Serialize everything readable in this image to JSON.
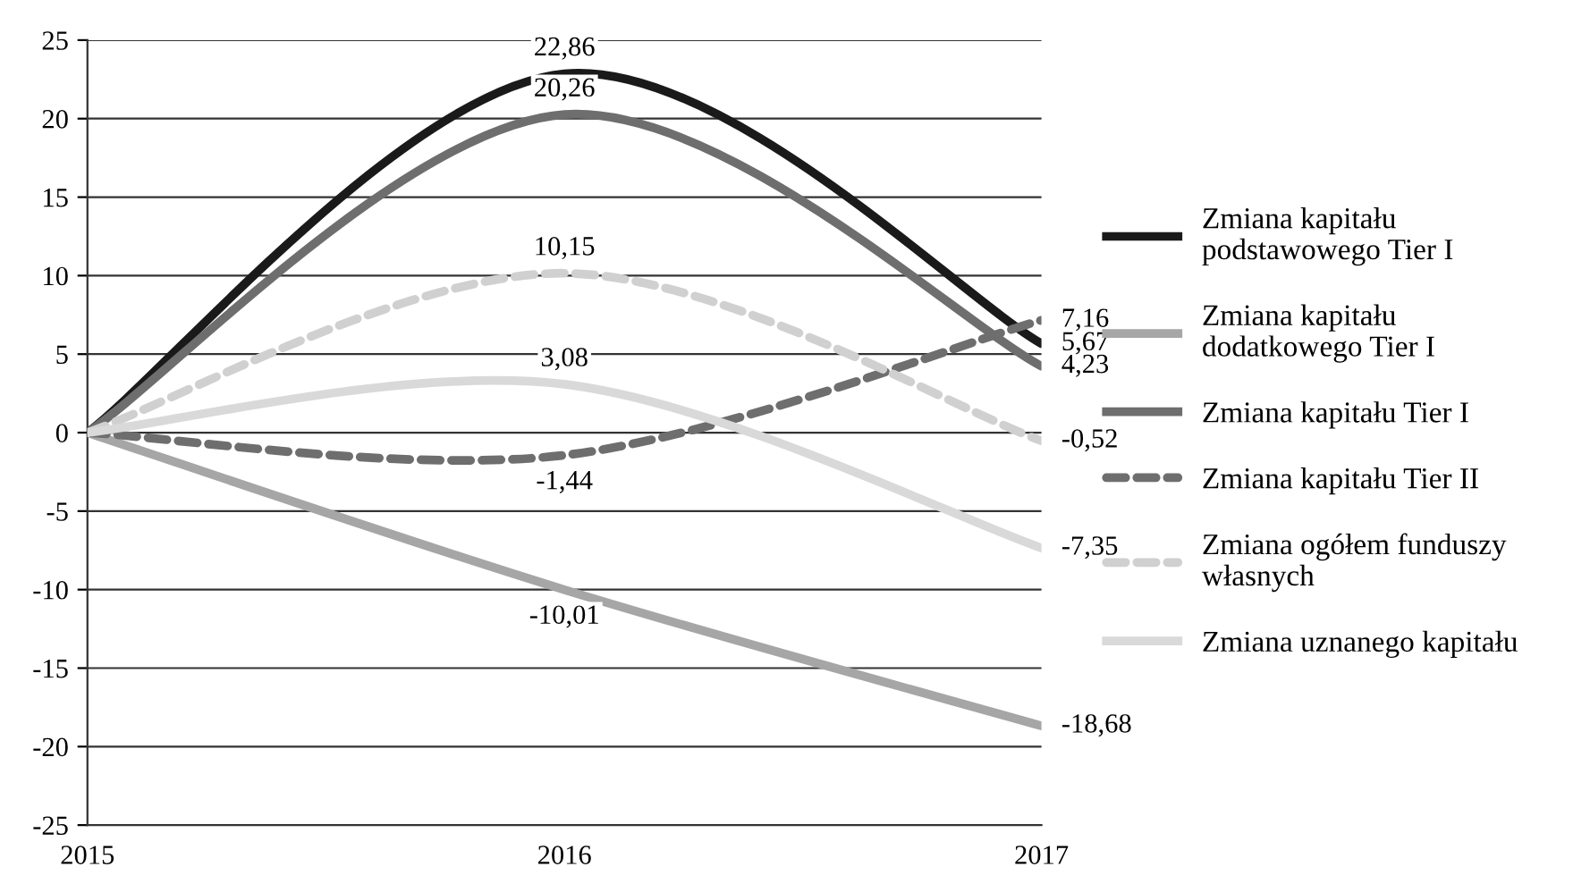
{
  "chart_data": {
    "type": "line",
    "x": [
      2015,
      2016,
      2017
    ],
    "xlim": [
      2015,
      2017
    ],
    "xticks": [
      2015,
      2016,
      2017
    ],
    "ylim": [
      -25,
      25
    ],
    "yticks": [
      -25,
      -20,
      -15,
      -10,
      -5,
      0,
      5,
      10,
      15,
      20,
      25
    ],
    "grid": "y",
    "legend": "right",
    "marker": "none",
    "series": [
      {
        "name": "Zmiana kapitału\npodstawowego Tier I",
        "color": "#1a1a1a",
        "line_style": "solid",
        "values": [
          0,
          22.86,
          5.67
        ],
        "value_labels": [
          null,
          "22,86",
          "5,67"
        ]
      },
      {
        "name": "Zmiana kapitału\ndodatkowego Tier I",
        "color": "#a6a6a6",
        "line_style": "solid",
        "values": [
          0,
          -10.01,
          -18.68
        ],
        "value_labels": [
          null,
          "-10,01",
          "-18,68"
        ]
      },
      {
        "name": "Zmiana kapitału Tier I",
        "color": "#6e6e6e",
        "line_style": "solid",
        "values": [
          0,
          20.26,
          4.23
        ],
        "value_labels": [
          null,
          "20,26",
          "4,23"
        ]
      },
      {
        "name": "Zmiana kapitału Tier II",
        "color": "#6e6e6e",
        "line_style": "dashed",
        "values": [
          0,
          -1.44,
          7.16
        ],
        "value_labels": [
          null,
          "-1,44",
          "7,16"
        ]
      },
      {
        "name": "Zmiana ogółem funduszy\nwłasnych",
        "color": "#d0d0d0",
        "line_style": "dashed",
        "values": [
          0,
          10.15,
          -0.52
        ],
        "value_labels": [
          null,
          "10,15",
          "-0,52"
        ]
      },
      {
        "name": "Zmiana uznanego kapitału",
        "color": "#d9d9d9",
        "line_style": "solid",
        "values": [
          0,
          3.08,
          -7.35
        ],
        "value_labels": [
          null,
          "3,08",
          "-7,35"
        ]
      }
    ]
  }
}
